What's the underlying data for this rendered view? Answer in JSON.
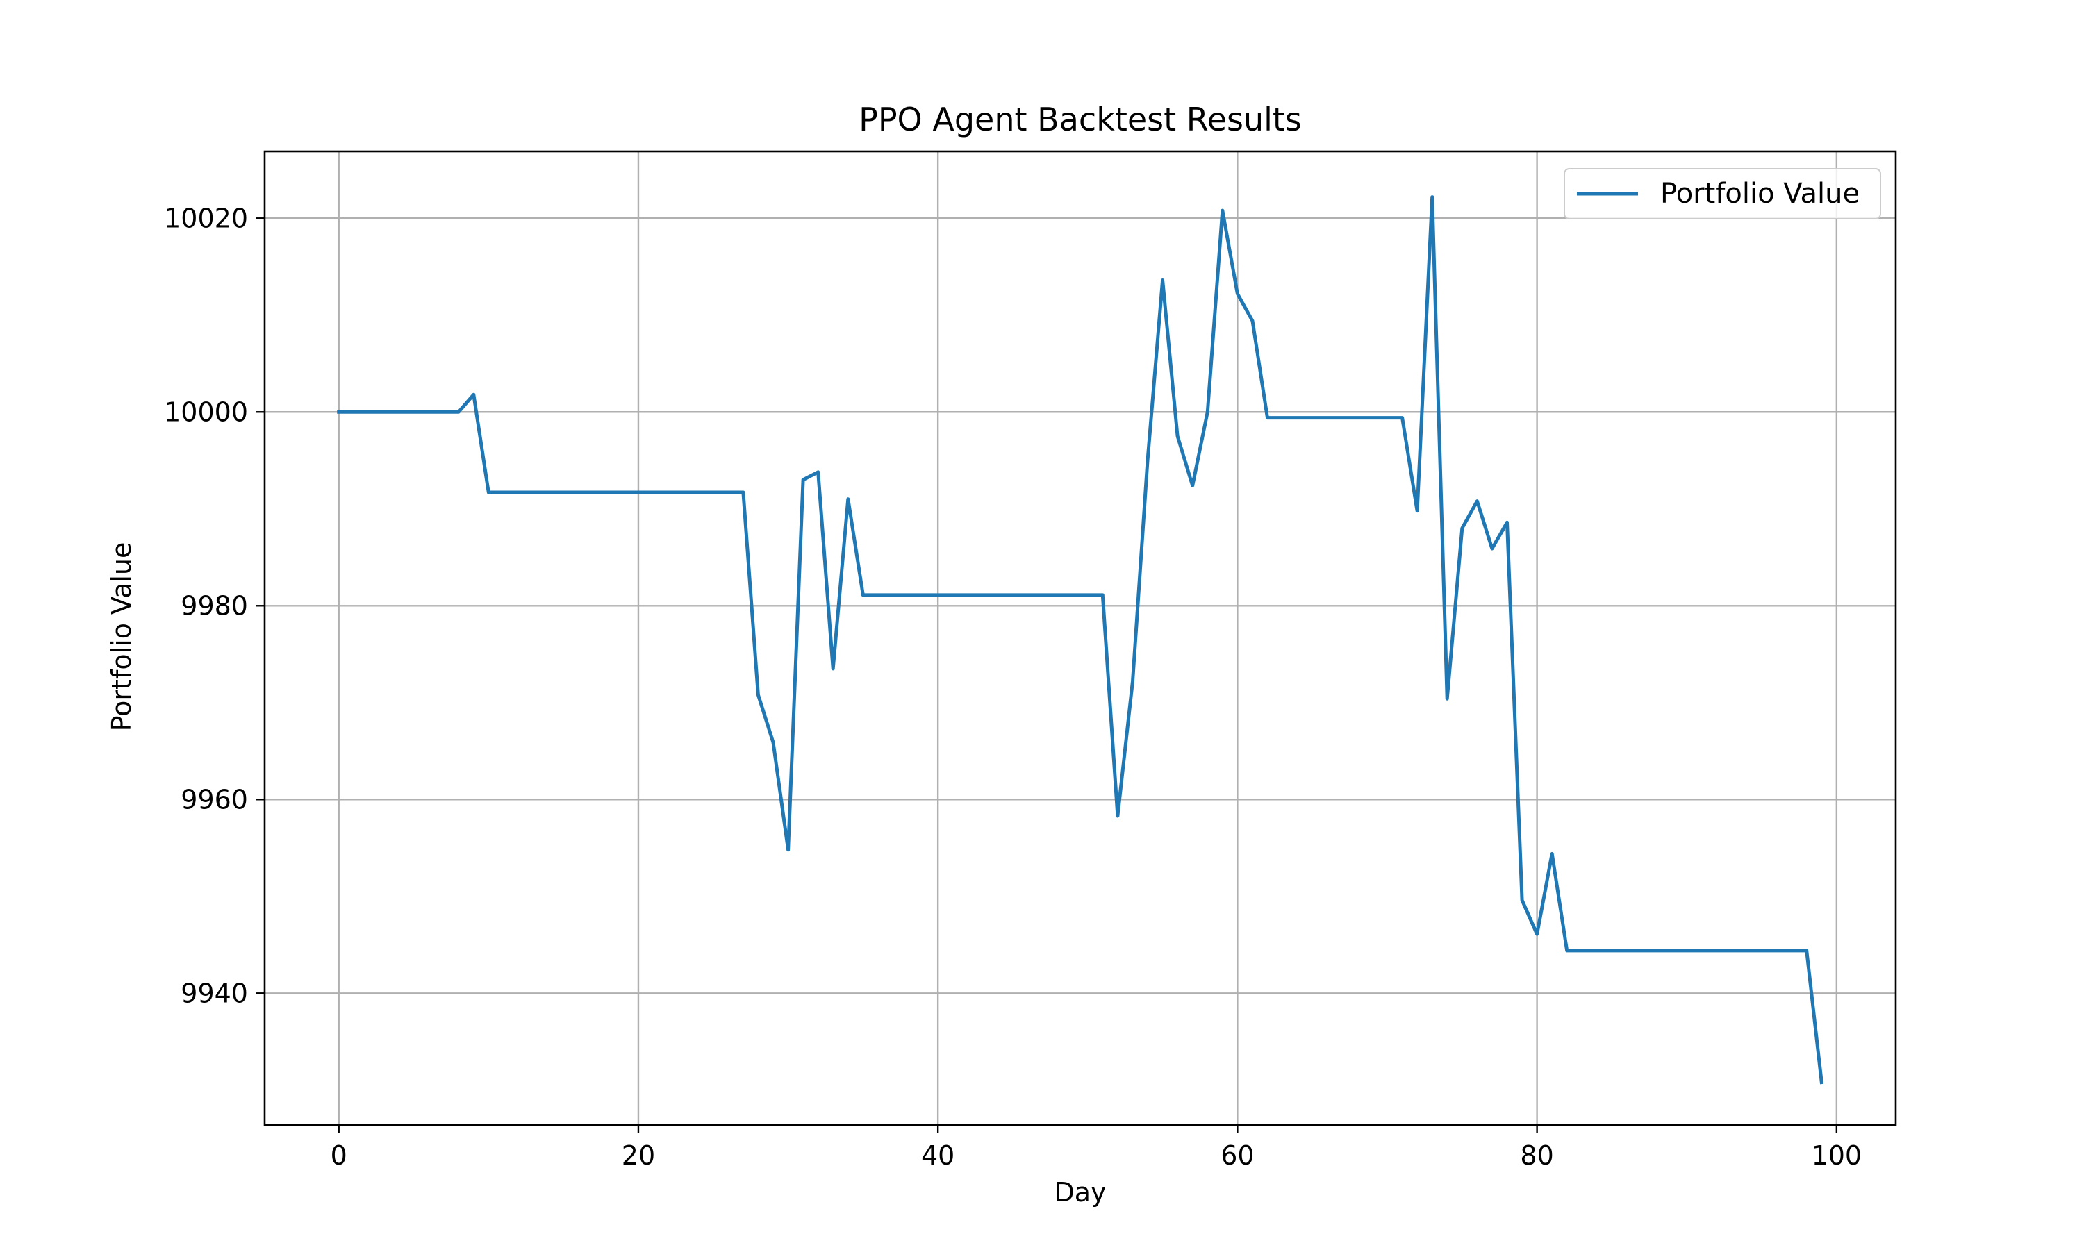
{
  "chart_data": {
    "type": "line",
    "title": "PPO Agent Backtest Results",
    "xlabel": "Day",
    "ylabel": "Portfolio Value",
    "xlim": [
      -4.95,
      103.95
    ],
    "ylim": [
      9926.4,
      10026.9
    ],
    "xticks": [
      0,
      20,
      40,
      60,
      80,
      100
    ],
    "yticks": [
      9940,
      9960,
      9980,
      10000,
      10020
    ],
    "grid": true,
    "legend_position": "top-right",
    "series": [
      {
        "name": "Portfolio Value",
        "color": "#1f77b4",
        "x": [
          0,
          1,
          2,
          3,
          4,
          5,
          6,
          7,
          8,
          9,
          10,
          11,
          12,
          13,
          14,
          15,
          16,
          17,
          18,
          19,
          20,
          21,
          22,
          23,
          24,
          25,
          26,
          27,
          28,
          29,
          30,
          31,
          32,
          33,
          34,
          35,
          36,
          37,
          38,
          39,
          40,
          41,
          42,
          43,
          44,
          45,
          46,
          47,
          48,
          49,
          50,
          51,
          52,
          53,
          54,
          55,
          56,
          57,
          58,
          59,
          60,
          61,
          62,
          63,
          64,
          65,
          66,
          67,
          68,
          69,
          70,
          71,
          72,
          73,
          74,
          75,
          76,
          77,
          78,
          79,
          80,
          81,
          82,
          83,
          84,
          85,
          86,
          87,
          88,
          89,
          90,
          91,
          92,
          93,
          94,
          95,
          96,
          97,
          98,
          99
        ],
        "values": [
          10000.0,
          10000.0,
          10000.0,
          10000.0,
          10000.0,
          10000.0,
          10000.0,
          10000.0,
          10000.0,
          10001.8,
          9991.7,
          9991.7,
          9991.7,
          9991.7,
          9991.7,
          9991.7,
          9991.7,
          9991.7,
          9991.7,
          9991.7,
          9991.7,
          9991.7,
          9991.7,
          9991.7,
          9991.7,
          9991.7,
          9991.7,
          9991.7,
          9970.8,
          9965.9,
          9954.8,
          9993.0,
          9993.8,
          9973.5,
          9991.0,
          9981.1,
          9981.1,
          9981.1,
          9981.1,
          9981.1,
          9981.1,
          9981.1,
          9981.1,
          9981.1,
          9981.1,
          9981.1,
          9981.1,
          9981.1,
          9981.1,
          9981.1,
          9981.1,
          9981.1,
          9958.3,
          9972.2,
          9995.0,
          10013.6,
          9997.5,
          9992.4,
          10000.0,
          10020.8,
          10012.2,
          10009.4,
          9999.4,
          9999.4,
          9999.4,
          9999.4,
          9999.4,
          9999.4,
          9999.4,
          9999.4,
          9999.4,
          9999.4,
          9989.8,
          10022.2,
          9970.4,
          9988.0,
          9990.8,
          9985.9,
          9988.6,
          9949.6,
          9946.1,
          9954.4,
          9944.4,
          9944.4,
          9944.4,
          9944.4,
          9944.4,
          9944.4,
          9944.4,
          9944.4,
          9944.4,
          9944.4,
          9944.4,
          9944.4,
          9944.4,
          9944.4,
          9944.4,
          9944.4,
          9944.4,
          9930.8
        ]
      }
    ]
  }
}
